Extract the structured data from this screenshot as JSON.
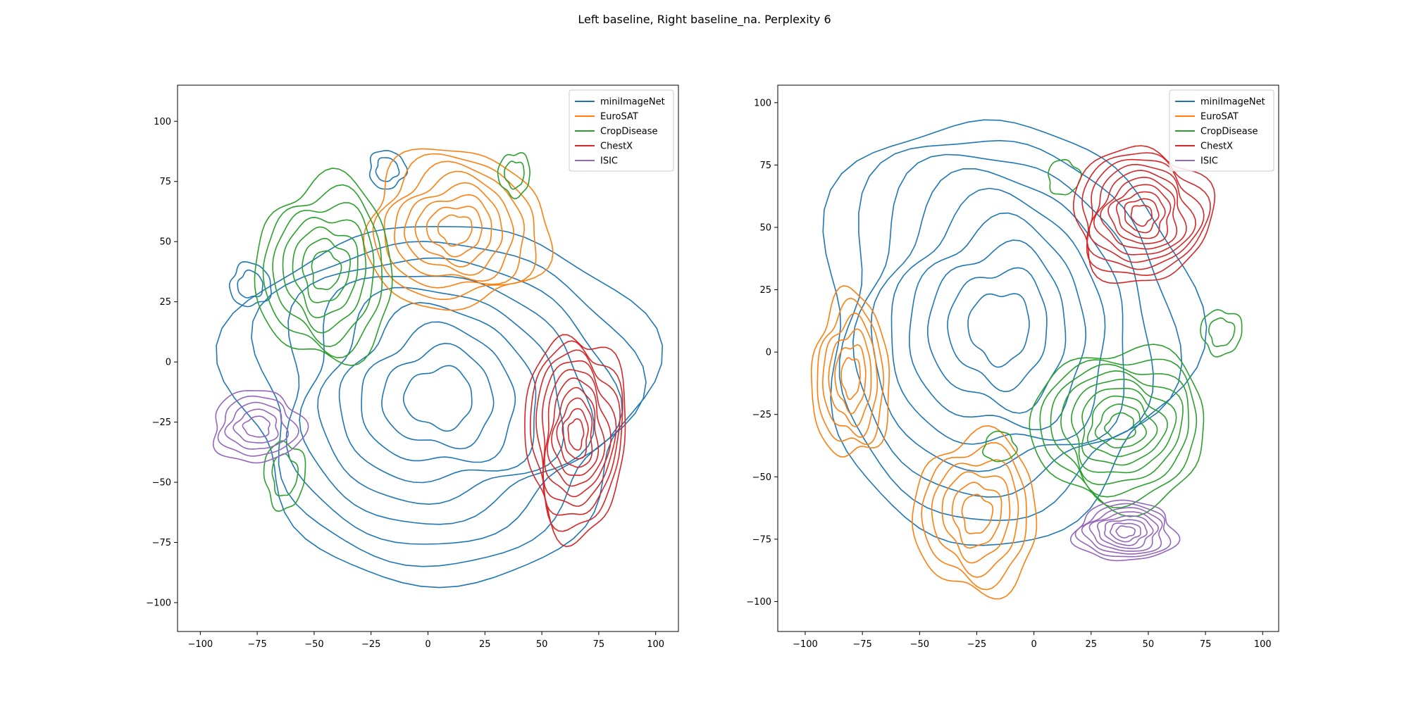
{
  "figure": {
    "suptitle": "Left baseline, Right baseline_na. Perplexity 6"
  },
  "chart_data": [
    {
      "type": "contour",
      "title": "",
      "xlabel": "",
      "ylabel": "",
      "xlim": [
        -110,
        110
      ],
      "ylim": [
        -112,
        115
      ],
      "xticks": [
        -100,
        -75,
        -50,
        -25,
        0,
        25,
        50,
        75,
        100
      ],
      "yticks": [
        -100,
        -75,
        -50,
        -25,
        0,
        25,
        50,
        75,
        100
      ],
      "grid": false,
      "legend": {
        "placement": "top-right",
        "entries": [
          "miniImageNet",
          "EuroSAT",
          "CropDisease",
          "ChestX",
          "ISIC"
        ]
      },
      "series": [
        {
          "name": "miniImageNet",
          "color": "#1f77b4",
          "clusters": [
            {
              "center": [
                5,
                -15
              ],
              "radii": [
                90,
                75
              ],
              "levels": 9
            },
            {
              "center": [
                -18,
                80
              ],
              "radii": [
                8,
                8
              ],
              "levels": 2
            },
            {
              "center": [
                -78,
                32
              ],
              "radii": [
                9,
                9
              ],
              "levels": 2
            }
          ]
        },
        {
          "name": "EuroSAT",
          "color": "#ff7f0e",
          "clusters": [
            {
              "center": [
                12,
                55
              ],
              "radii": [
                40,
                33
              ],
              "levels": 8
            }
          ]
        },
        {
          "name": "CropDisease",
          "color": "#2ca02c",
          "clusters": [
            {
              "center": [
                -45,
                38
              ],
              "radii": [
                30,
                38
              ],
              "levels": 7
            },
            {
              "center": [
                38,
                78
              ],
              "radii": [
                7,
                9
              ],
              "levels": 2
            },
            {
              "center": [
                -63,
                -47
              ],
              "radii": [
                9,
                14
              ],
              "levels": 2
            }
          ]
        },
        {
          "name": "ChestX",
          "color": "#d62728",
          "clusters": [
            {
              "center": [
                65,
                -30
              ],
              "radii": [
                22,
                42
              ],
              "levels": 10
            }
          ]
        },
        {
          "name": "ISIC",
          "color": "#9467bd",
          "clusters": [
            {
              "center": [
                -75,
                -27
              ],
              "radii": [
                20,
                15
              ],
              "levels": 5
            }
          ]
        }
      ]
    },
    {
      "type": "contour",
      "title": "",
      "xlabel": "",
      "ylabel": "",
      "xlim": [
        -112,
        107
      ],
      "ylim": [
        -112,
        107
      ],
      "xticks": [
        -100,
        -75,
        -50,
        -25,
        0,
        25,
        50,
        75,
        100
      ],
      "yticks": [
        -100,
        -75,
        -50,
        -25,
        0,
        25,
        50,
        75,
        100
      ],
      "grid": false,
      "legend": {
        "placement": "top-right",
        "entries": [
          "miniImageNet",
          "EuroSAT",
          "CropDisease",
          "ChestX",
          "ISIC"
        ]
      },
      "series": [
        {
          "name": "miniImageNet",
          "color": "#1f77b4",
          "clusters": [
            {
              "center": [
                -15,
                10
              ],
              "radii": [
                80,
                85
              ],
              "levels": 9
            }
          ]
        },
        {
          "name": "EuroSAT",
          "color": "#ff7f0e",
          "clusters": [
            {
              "center": [
                -80,
                -10
              ],
              "radii": [
                17,
                33
              ],
              "levels": 6
            },
            {
              "center": [
                -25,
                -65
              ],
              "radii": [
                27,
                32
              ],
              "levels": 6
            }
          ]
        },
        {
          "name": "CropDisease",
          "color": "#2ca02c",
          "clusters": [
            {
              "center": [
                38,
                -30
              ],
              "radii": [
                38,
                32
              ],
              "levels": 9
            },
            {
              "center": [
                82,
                8
              ],
              "radii": [
                9,
                9
              ],
              "levels": 2
            },
            {
              "center": [
                13,
                70
              ],
              "radii": [
                7,
                7
              ],
              "levels": 1
            },
            {
              "center": [
                -15,
                -38
              ],
              "radii": [
                7,
                6
              ],
              "levels": 1
            }
          ]
        },
        {
          "name": "ChestX",
          "color": "#d62728",
          "clusters": [
            {
              "center": [
                47,
                55
              ],
              "radii": [
                30,
                27
              ],
              "levels": 10
            }
          ]
        },
        {
          "name": "ISIC",
          "color": "#9467bd",
          "clusters": [
            {
              "center": [
                40,
                -72
              ],
              "radii": [
                22,
                12
              ],
              "levels": 8
            }
          ]
        }
      ]
    }
  ]
}
